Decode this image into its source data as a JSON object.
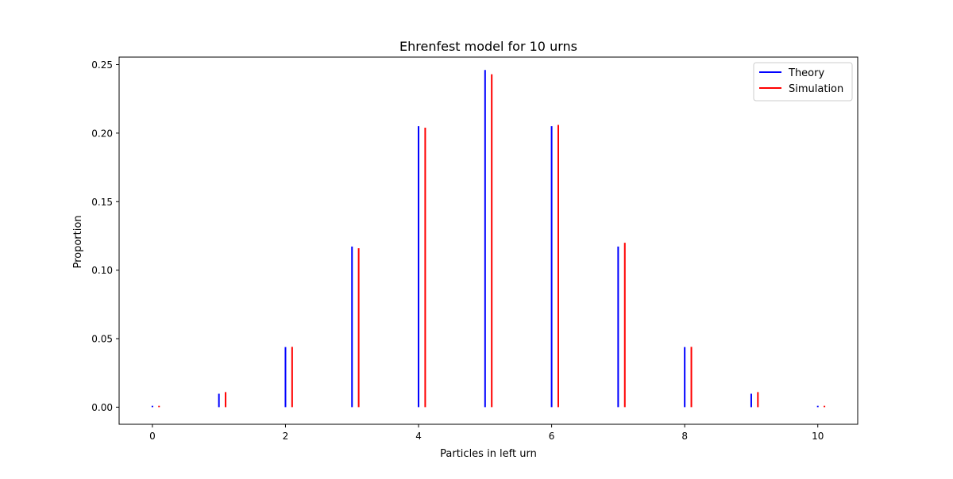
{
  "chart_data": {
    "type": "bar",
    "title": "Ehrenfest model for 10 urns",
    "xlabel": "Particles in left urn",
    "ylabel": "Proportion",
    "xlim": [
      -0.5,
      10.6
    ],
    "ylim": [
      -0.0125,
      0.2555
    ],
    "xticks": [
      0,
      2,
      4,
      6,
      8,
      10
    ],
    "xtick_labels": [
      "0",
      "2",
      "4",
      "6",
      "8",
      "10"
    ],
    "yticks": [
      0.0,
      0.05,
      0.1,
      0.15,
      0.2,
      0.25
    ],
    "ytick_labels": [
      "0.00",
      "0.05",
      "0.10",
      "0.15",
      "0.20",
      "0.25"
    ],
    "grid": false,
    "legend_position": "top-right",
    "series": [
      {
        "name": "Theory",
        "color": "#0000ff",
        "x": [
          0,
          1,
          2,
          3,
          4,
          5,
          6,
          7,
          8,
          9,
          10
        ],
        "values": [
          0.001,
          0.0098,
          0.0439,
          0.1172,
          0.2051,
          0.2461,
          0.2051,
          0.1172,
          0.0439,
          0.0098,
          0.001
        ]
      },
      {
        "name": "Simulation",
        "color": "#ff0000",
        "x": [
          0.1,
          1.1,
          2.1,
          3.1,
          4.1,
          5.1,
          6.1,
          7.1,
          8.1,
          9.1,
          10.1
        ],
        "values": [
          0.001,
          0.011,
          0.044,
          0.116,
          0.204,
          0.243,
          0.206,
          0.12,
          0.044,
          0.011,
          0.001
        ]
      }
    ]
  }
}
